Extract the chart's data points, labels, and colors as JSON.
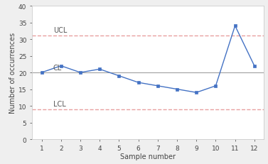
{
  "x": [
    1,
    2,
    3,
    4,
    5,
    6,
    7,
    8,
    9,
    10,
    11,
    12
  ],
  "y": [
    20,
    22,
    20,
    21,
    19,
    17,
    16,
    15,
    14,
    16,
    34,
    22
  ],
  "ucl": 31,
  "cl": 20,
  "lcl": 9,
  "ucl_label": "UCL",
  "cl_label": "CL",
  "lcl_label": "LCL",
  "xlabel": "Sample number",
  "ylabel": "Number of occurrences",
  "xlim": [
    0.5,
    12.5
  ],
  "ylim": [
    0,
    40
  ],
  "yticks": [
    0,
    5,
    10,
    15,
    20,
    25,
    30,
    35,
    40
  ],
  "xticks": [
    1,
    2,
    3,
    4,
    5,
    6,
    7,
    8,
    9,
    10,
    11,
    12
  ],
  "line_color": "#4472C4",
  "marker_color": "#4472C4",
  "cl_color": "#A0A0A0",
  "ucl_color": "#E8A0A0",
  "lcl_color": "#E8A0A0",
  "background_color": "#EFEFEF",
  "plot_bg_color": "#FFFFFF",
  "label_fontsize": 7,
  "tick_fontsize": 6.5,
  "annotation_fontsize": 7
}
